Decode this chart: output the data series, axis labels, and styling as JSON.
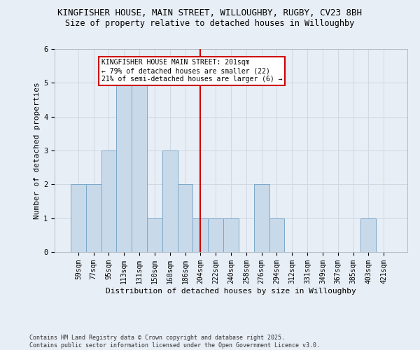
{
  "title_line1": "KINGFISHER HOUSE, MAIN STREET, WILLOUGHBY, RUGBY, CV23 8BH",
  "title_line2": "Size of property relative to detached houses in Willoughby",
  "xlabel": "Distribution of detached houses by size in Willoughby",
  "ylabel": "Number of detached properties",
  "categories": [
    "59sqm",
    "77sqm",
    "95sqm",
    "113sqm",
    "131sqm",
    "150sqm",
    "168sqm",
    "186sqm",
    "204sqm",
    "222sqm",
    "240sqm",
    "258sqm",
    "276sqm",
    "294sqm",
    "312sqm",
    "331sqm",
    "349sqm",
    "367sqm",
    "385sqm",
    "403sqm",
    "421sqm"
  ],
  "values": [
    2,
    2,
    3,
    5,
    5,
    1,
    3,
    2,
    1,
    1,
    1,
    0,
    2,
    1,
    0,
    0,
    0,
    0,
    0,
    1,
    0
  ],
  "bar_color": "#c8d9ea",
  "bar_edge_color": "#7ca8c8",
  "grid_color": "#d0d8e4",
  "background_color": "#e8eef5",
  "ref_line_index": 8,
  "ref_line_color": "#cc0000",
  "annotation_text": "KINGFISHER HOUSE MAIN STREET: 201sqm\n← 79% of detached houses are smaller (22)\n21% of semi-detached houses are larger (6) →",
  "annotation_box_color": "#ffffff",
  "annotation_box_edge": "#cc0000",
  "ylim": [
    0,
    6
  ],
  "yticks": [
    0,
    1,
    2,
    3,
    4,
    5,
    6
  ],
  "footer_text": "Contains HM Land Registry data © Crown copyright and database right 2025.\nContains public sector information licensed under the Open Government Licence v3.0.",
  "title1_fontsize": 9,
  "title2_fontsize": 8.5,
  "tick_fontsize": 7,
  "ylabel_fontsize": 8,
  "xlabel_fontsize": 8,
  "annotation_fontsize": 7,
  "footer_fontsize": 6
}
